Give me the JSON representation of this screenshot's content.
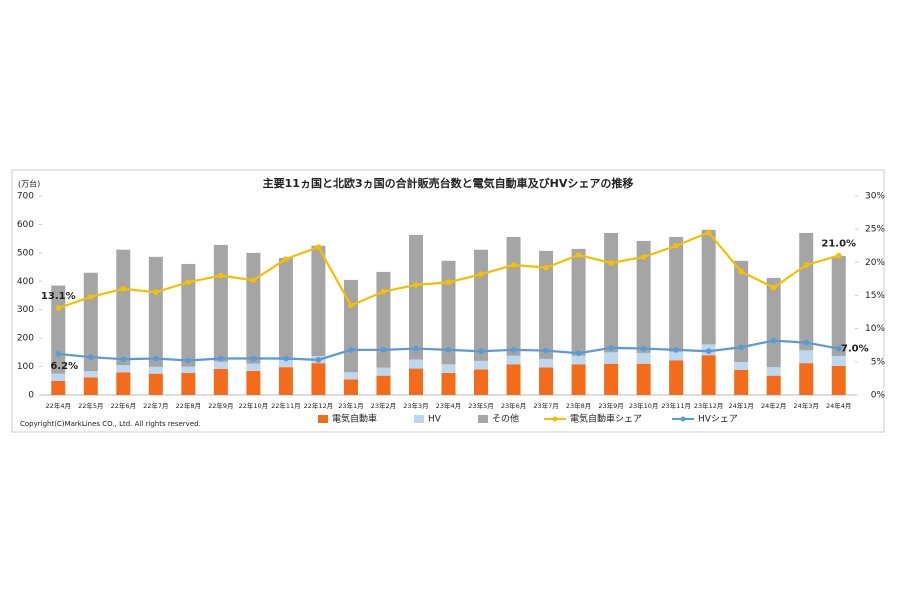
{
  "chart_data": {
    "type": "bar",
    "stacked": true,
    "title": "主要11ヵ国と北欧3ヵ国の合計販売台数と電気自動車及びHVシェアの推移",
    "y_label": "(万台)",
    "footnote": "Copyright(C)MarkLines CO., Ltd. All rights reserved.",
    "categories": [
      "22年4月",
      "22年5月",
      "22年6月",
      "22年7月",
      "22年8月",
      "22年9月",
      "22年10月",
      "22年11月",
      "22年12月",
      "23年1月",
      "23年2月",
      "23年3月",
      "23年4月",
      "23年5月",
      "23年6月",
      "23年7月",
      "23年8月",
      "23年9月",
      "23年10月",
      "23年11月",
      "23年12月",
      "24年1月",
      "24年2月",
      "24年3月",
      "24年4月"
    ],
    "ylim": [
      0,
      700
    ],
    "yticks": [
      0,
      100,
      200,
      300,
      400,
      500,
      600,
      700
    ],
    "y2lim": [
      0,
      30
    ],
    "y2ticks": [
      {
        "value": 0,
        "label": "0%"
      },
      {
        "value": 5,
        "label": "5%"
      },
      {
        "value": 10,
        "label": "10%"
      },
      {
        "value": 15,
        "label": "15%"
      },
      {
        "value": 20,
        "label": "20%"
      },
      {
        "value": 25,
        "label": "25%"
      },
      {
        "value": 30,
        "label": "30%"
      }
    ],
    "series": [
      {
        "name": "電気自動車",
        "type": "bar",
        "color": "#f26c1c",
        "values": [
          50,
          62,
          80,
          75,
          78,
          92,
          85,
          98,
          112,
          55,
          68,
          93,
          78,
          90,
          108,
          97,
          108,
          110,
          110,
          122,
          140,
          88,
          68,
          112,
          102
        ]
      },
      {
        "name": "HV",
        "type": "bar",
        "color": "#bdd7ee",
        "values": [
          25,
          22,
          25,
          24,
          22,
          25,
          25,
          25,
          25,
          25,
          28,
          32,
          30,
          30,
          30,
          30,
          30,
          40,
          38,
          30,
          38,
          28,
          30,
          45,
          35
        ]
      },
      {
        "name": "その他",
        "type": "bar",
        "color": "#a5a5a5",
        "values": [
          310,
          346,
          406,
          387,
          361,
          411,
          390,
          359,
          388,
          325,
          337,
          438,
          364,
          391,
          418,
          380,
          376,
          420,
          394,
          404,
          403,
          356,
          314,
          413,
          352
        ]
      },
      {
        "name": "電気自動車シェア",
        "type": "line",
        "axis": "y2",
        "color": "#f5c000",
        "values": [
          13.1,
          14.8,
          16.0,
          15.5,
          17.0,
          18.0,
          17.3,
          20.5,
          22.3,
          13.5,
          15.6,
          16.6,
          17.0,
          18.2,
          19.6,
          19.2,
          21.1,
          19.9,
          20.8,
          22.5,
          24.5,
          18.6,
          16.2,
          19.6,
          21.0
        ],
        "value_labels": [
          "13.1%",
          null,
          null,
          null,
          null,
          null,
          null,
          null,
          null,
          null,
          null,
          null,
          null,
          null,
          null,
          null,
          null,
          null,
          null,
          null,
          null,
          null,
          null,
          null,
          "21.0%"
        ]
      },
      {
        "name": "HVシェア",
        "type": "line",
        "axis": "y2",
        "color": "#5b9bd5",
        "values": [
          6.2,
          5.7,
          5.4,
          5.5,
          5.2,
          5.5,
          5.5,
          5.5,
          5.3,
          6.8,
          6.8,
          7.0,
          6.8,
          6.6,
          6.8,
          6.7,
          6.3,
          7.1,
          7.0,
          6.8,
          6.6,
          7.2,
          8.2,
          7.9,
          7.0
        ],
        "value_labels": [
          "6.2%",
          null,
          null,
          null,
          null,
          null,
          null,
          null,
          null,
          null,
          null,
          null,
          null,
          null,
          null,
          null,
          null,
          null,
          null,
          null,
          null,
          null,
          null,
          null,
          "7.0%"
        ]
      }
    ]
  }
}
